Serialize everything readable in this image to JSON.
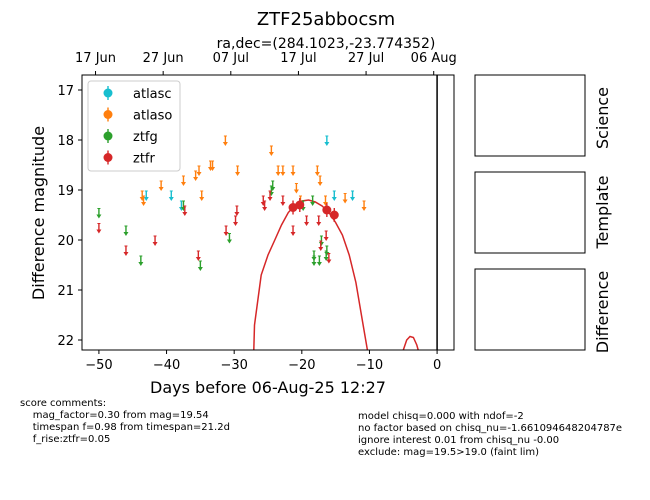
{
  "chart_data": {
    "type": "scatter",
    "title": "ZTF25abbocsm",
    "subtitle": "ra,dec=(284.1023,-23.774352)",
    "xlabel": "Days before 06-Aug-25 12:27",
    "ylabel": "Difference magnitude",
    "xlim": [
      -52.5,
      2.5
    ],
    "ylim": [
      22.2,
      16.7
    ],
    "x_ticks": [
      -50,
      -40,
      -30,
      -20,
      -10,
      0
    ],
    "y_ticks": [
      17,
      18,
      19,
      20,
      21,
      22
    ],
    "top_axis_ticks": [
      {
        "label": "17 Jun",
        "x": -50.5
      },
      {
        "label": "27 Jun",
        "x": -40.5
      },
      {
        "label": "07 Jul",
        "x": -30.5
      },
      {
        "label": "17 Jul",
        "x": -20.5
      },
      {
        "label": "27 Jul",
        "x": -10.5
      },
      {
        "label": "06 Aug",
        "x": -0.5
      }
    ],
    "vline_x": 0,
    "legend_position": "upper-left",
    "series": [
      {
        "name": "atlasc",
        "color": "#17becf",
        "upper_limits": [
          [
            -43,
            19.1
          ],
          [
            -39.3,
            19.1
          ],
          [
            -37.8,
            19.3
          ],
          [
            -16.3,
            18.0
          ],
          [
            -15.2,
            19.1
          ],
          [
            -12.5,
            19.1
          ]
        ]
      },
      {
        "name": "atlaso",
        "color": "#ff7f0e",
        "upper_limits": [
          [
            -43.6,
            19.1
          ],
          [
            -43.4,
            19.2
          ],
          [
            -40.8,
            18.9
          ],
          [
            -37.5,
            18.8
          ],
          [
            -35.7,
            18.7
          ],
          [
            -35.2,
            18.6
          ],
          [
            -34.8,
            19.1
          ],
          [
            -33.5,
            18.5
          ],
          [
            -33.2,
            18.5
          ],
          [
            -31.3,
            18.0
          ],
          [
            -29.5,
            18.6
          ],
          [
            -24.5,
            18.2
          ],
          [
            -23.5,
            18.6
          ],
          [
            -22.8,
            18.6
          ],
          [
            -21.3,
            18.6
          ],
          [
            -20.8,
            18.95
          ],
          [
            -20.2,
            19.2
          ],
          [
            -17.7,
            18.6
          ],
          [
            -17.3,
            18.8
          ],
          [
            -16.5,
            19.2
          ],
          [
            -13.6,
            19.15
          ],
          [
            -10.8,
            19.3
          ]
        ]
      },
      {
        "name": "ztfg",
        "color": "#2ca02c",
        "upper_limits": [
          [
            -50,
            19.45
          ],
          [
            -46,
            19.8
          ],
          [
            -43.8,
            20.4
          ],
          [
            -37.5,
            19.3
          ],
          [
            -35,
            20.5
          ],
          [
            -30.7,
            19.95
          ],
          [
            -24.5,
            19.0
          ],
          [
            -24.3,
            18.9
          ],
          [
            -19.8,
            19.3
          ],
          [
            -18.4,
            19.2
          ],
          [
            -18.2,
            20.3
          ],
          [
            -18.2,
            20.4
          ],
          [
            -17.4,
            20.4
          ],
          [
            -17.1,
            20.0
          ],
          [
            -16.4,
            20.3
          ],
          [
            -16.3,
            20.2
          ]
        ]
      },
      {
        "name": "ztfr",
        "color": "#d62728",
        "upper_limits": [
          [
            -50,
            19.75
          ],
          [
            -46,
            20.2
          ],
          [
            -41.7,
            20.0
          ],
          [
            -37.3,
            19.4
          ],
          [
            -35.3,
            20.3
          ],
          [
            -31.2,
            19.8
          ],
          [
            -29.8,
            19.6
          ],
          [
            -29.6,
            19.4
          ],
          [
            -25.7,
            19.2
          ],
          [
            -25.5,
            19.3
          ],
          [
            -24.7,
            19.1
          ],
          [
            -22.8,
            19.2
          ],
          [
            -21.3,
            19.8
          ],
          [
            -19.3,
            19.6
          ],
          [
            -17.5,
            19.6
          ],
          [
            -17.2,
            20.1
          ],
          [
            -16.4,
            19.9
          ],
          [
            -16.0,
            20.35
          ]
        ],
        "detections": [
          [
            -21.3,
            19.35
          ],
          [
            -20.3,
            19.3
          ],
          [
            -16.3,
            19.4
          ],
          [
            -15.2,
            19.5
          ]
        ],
        "fit_curve": [
          [
            -27.1,
            22.2
          ],
          [
            -27.0,
            21.7
          ],
          [
            -26.0,
            20.7
          ],
          [
            -25.0,
            20.3
          ],
          [
            -24.0,
            20.0
          ],
          [
            -23.0,
            19.7
          ],
          [
            -22.0,
            19.45
          ],
          [
            -21.0,
            19.3
          ],
          [
            -20.0,
            19.22
          ],
          [
            -19.0,
            19.2
          ],
          [
            -18.0,
            19.24
          ],
          [
            -17.0,
            19.32
          ],
          [
            -16.0,
            19.45
          ],
          [
            -15.0,
            19.65
          ],
          [
            -14.0,
            19.9
          ],
          [
            -13.0,
            20.3
          ],
          [
            -12.0,
            20.85
          ],
          [
            -11.0,
            21.65
          ],
          [
            -10.3,
            22.2
          ]
        ],
        "fit_bump": [
          [
            -5.0,
            22.2
          ],
          [
            -4.5,
            22.0
          ],
          [
            -4.0,
            21.93
          ],
          [
            -3.5,
            21.95
          ],
          [
            -3.0,
            22.1
          ],
          [
            -2.8,
            22.2
          ]
        ]
      }
    ]
  },
  "panels": [
    {
      "label": "Science"
    },
    {
      "label": "Template"
    },
    {
      "label": "Difference"
    }
  ],
  "notes": {
    "left": "score comments:\n    mag_factor=0.30 from mag=19.54\n    timespan f=0.98 from timespan=21.2d\n    f_rise:ztfr=0.05",
    "right": "model chisq=0.000 with ndof=-2\nno factor based on chisq_nu=-1.661094648204787e\nignore interest 0.01 from chisq_nu -0.00\nexclude: mag=19.5>19.0 (faint lim)"
  }
}
